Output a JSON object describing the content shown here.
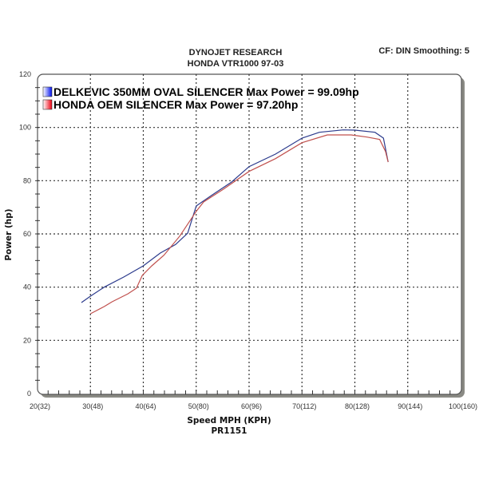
{
  "header": {
    "title": "DYNOJET RESEARCH",
    "subtitle": "HONDA VTR1000 97-03",
    "settings": "CF: DIN  Smoothing: 5"
  },
  "chart_data": {
    "type": "line",
    "title": "DYNOJET RESEARCH",
    "subtitle": "HONDA VTR1000 97-03",
    "xlabel": "Speed MPH (KPH)",
    "xlabel2": "PR1151",
    "ylabel": "Power (hp)",
    "xlim": [
      20,
      100
    ],
    "ylim": [
      0,
      120
    ],
    "xticks": [
      20,
      30,
      40,
      50,
      60,
      70,
      80,
      90,
      100
    ],
    "xtick_labels": [
      "20(32)",
      "30(48)",
      "40(64)",
      "50(80)",
      "60(96)",
      "70(112)",
      "80(128)",
      "90(144)",
      "100(160)"
    ],
    "yticks": [
      0,
      20,
      40,
      60,
      80,
      100,
      120
    ],
    "ytick_labels": [
      "0",
      "20",
      "40",
      "60",
      "80",
      "100",
      "120"
    ],
    "grid": true,
    "legend_placement": "top-left",
    "series": [
      {
        "name": "DELKEVIC 350MM OVAL SILENCER  Max Power = 99.09hp",
        "color": "#2b3a8c",
        "legend_color": "#1a1aff",
        "x": [
          28.3,
          30,
          32.6,
          36.3,
          40,
          43.2,
          46.1,
          48.4,
          50,
          52.9,
          56.7,
          60,
          65,
          70,
          73.3,
          77.8,
          80,
          83.8,
          85.4,
          86.3
        ],
        "y": [
          34.2,
          36.6,
          40,
          43.8,
          48,
          52.8,
          56,
          60.3,
          70.5,
          74.5,
          79.5,
          85.3,
          90,
          96,
          98.2,
          99.09,
          99,
          98.2,
          96,
          87
        ]
      },
      {
        "name": "HONDA OEM SILENCER Max Power = 97.20hp",
        "color": "#c0504d",
        "legend_color": "#ff1a1a",
        "x": [
          30,
          32.6,
          34.1,
          37.1,
          38.7,
          39.8,
          41.6,
          43.9,
          46.9,
          50,
          51.4,
          55.2,
          60,
          65,
          70,
          74.8,
          79.3,
          82.3,
          84.7,
          85.8,
          86.3
        ],
        "y": [
          30,
          32.7,
          34.5,
          37.5,
          39.6,
          44.4,
          48,
          52,
          59.2,
          68.5,
          72,
          76.9,
          83.5,
          88.3,
          94.3,
          97.2,
          97.2,
          96.4,
          95.5,
          91,
          87
        ]
      }
    ]
  }
}
